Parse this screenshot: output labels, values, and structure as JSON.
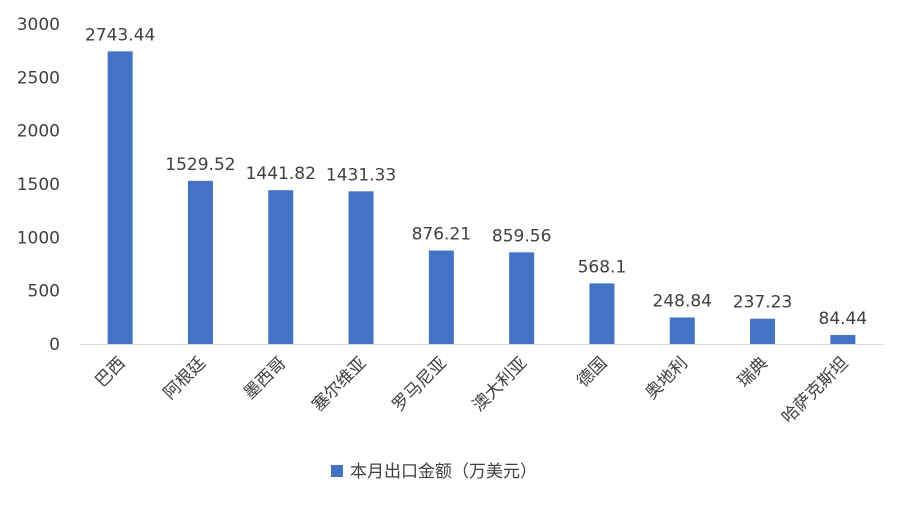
{
  "chart_data": {
    "type": "bar",
    "categories": [
      "巴西",
      "阿根廷",
      "墨西哥",
      "塞尔维亚",
      "罗马尼亚",
      "澳大利亚",
      "德国",
      "奥地利",
      "瑞典",
      "哈萨克斯坦"
    ],
    "series": [
      {
        "name": "本月出口金额（万美元）",
        "values": [
          2743.44,
          1529.52,
          1441.82,
          1431.33,
          876.21,
          859.56,
          568.1,
          248.84,
          237.23,
          84.44
        ],
        "data_labels": [
          "2743.44",
          "1529.52",
          "1441.82",
          "1431.33",
          "876.21",
          "859.56",
          "568.1",
          "248.84",
          "237.23",
          "84.44"
        ],
        "color": "#4472C4"
      }
    ],
    "y_ticks": [
      "0",
      "500",
      "1000",
      "1500",
      "2000",
      "2500",
      "3000"
    ],
    "ylim": [
      0,
      3000
    ],
    "grid": false,
    "legend_position": "bottom",
    "title": "",
    "xlabel": "",
    "ylabel": ""
  }
}
